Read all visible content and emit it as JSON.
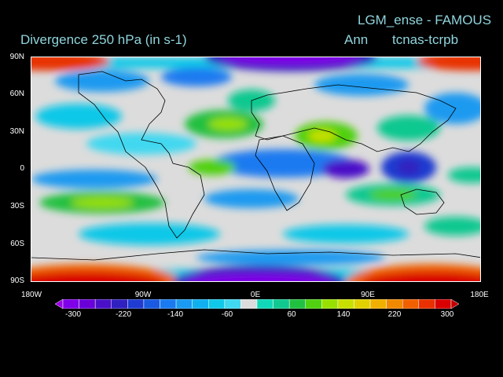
{
  "header": {
    "title_main": "LGM_ense - FAMOUS",
    "title_variable": "Divergence   250 hPa  (in s-1)",
    "title_period": "Ann",
    "title_experiment": "tcnas-tcrpb"
  },
  "axes": {
    "lat_labels": [
      "90N",
      "60N",
      "30N",
      "0",
      "30S",
      "60S",
      "90S"
    ],
    "lon_labels": [
      "180W",
      "90W",
      "0E",
      "90E",
      "180E"
    ]
  },
  "colorbar": {
    "tick_labels": [
      "-300",
      "-220",
      "-140",
      "-60",
      "60",
      "140",
      "220",
      "300"
    ],
    "colors": [
      "#9a00e6",
      "#7f00e6",
      "#6a00d8",
      "#4a10c8",
      "#3020c0",
      "#1f3bd0",
      "#1a5ae0",
      "#1a7af0",
      "#1a9af0",
      "#10b0f0",
      "#10c8e8",
      "#40d8f0",
      "#dcdcdc",
      "#10d8b8",
      "#10c890",
      "#20c040",
      "#50d010",
      "#98e000",
      "#c8e000",
      "#e0d000",
      "#f0b000",
      "#f08800",
      "#f06000",
      "#e83000",
      "#d80000",
      "#c00000"
    ]
  },
  "palette": {
    "background": "#000000",
    "neutral": "#dcdcdc",
    "title_color": "#8fd4dc"
  }
}
